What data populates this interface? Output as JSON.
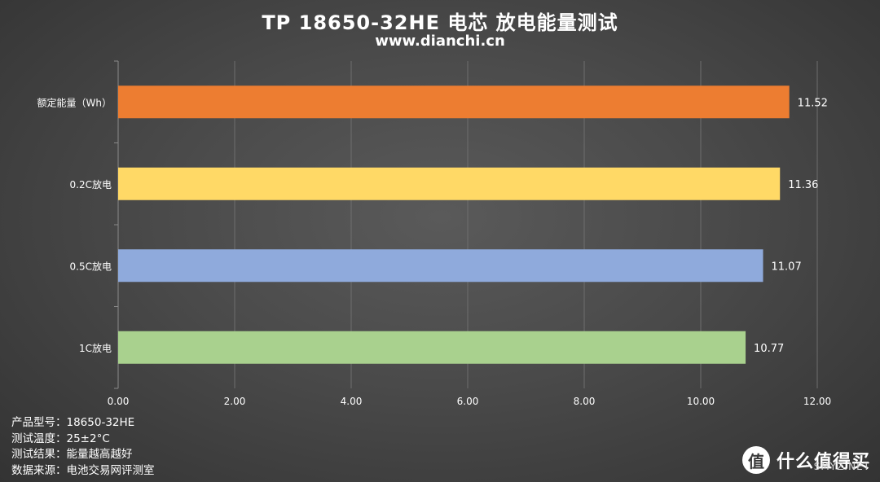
{
  "title": "TP 18650-32HE 电芯 放电能量测试",
  "subtitle": "www.dianchi.cn",
  "chart_data": {
    "type": "bar",
    "orientation": "horizontal",
    "categories": [
      "额定能量（Wh）",
      "0.2C放电",
      "0.5C放电",
      "1C放电"
    ],
    "values": [
      11.52,
      11.36,
      11.07,
      10.77
    ],
    "value_labels": [
      "11.52",
      "11.36",
      "11.07",
      "10.77"
    ],
    "colors": [
      "#ED7D31",
      "#FFD966",
      "#8FAADC",
      "#A9D18E"
    ],
    "xlim": [
      0,
      12
    ],
    "xticks": [
      0,
      2,
      4,
      6,
      8,
      10,
      12
    ],
    "xtick_labels": [
      "0.00",
      "2.00",
      "4.00",
      "6.00",
      "8.00",
      "10.00",
      "12.00"
    ],
    "xlabel": "",
    "ylabel": "",
    "grid": true,
    "legend": "none"
  },
  "info": [
    {
      "key": "产品型号：",
      "value": "18650-32HE"
    },
    {
      "key": "测试温度：",
      "value": "25±2°C"
    },
    {
      "key": "测试结果：",
      "value": "能量越高越好"
    },
    {
      "key": "数据来源：",
      "value": "电池交易网评测室"
    }
  ],
  "watermark": {
    "badge": "值",
    "text": "什么值得买",
    "site": "SMYZ.NET"
  }
}
